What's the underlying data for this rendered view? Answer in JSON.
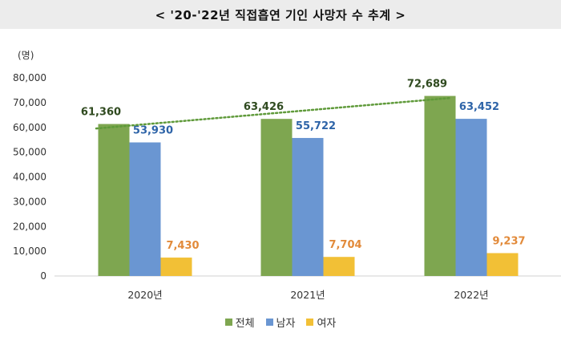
{
  "title": "< '20-'22년 직접흡연 기인 사망자 수 추계 >",
  "unit_label": "(명)",
  "chart_data": {
    "type": "bar",
    "categories": [
      "2020년",
      "2021년",
      "2022년"
    ],
    "series": [
      {
        "name": "전체",
        "values": [
          61360,
          63426,
          72689
        ],
        "labels": [
          "61,360",
          "63,426",
          "72,689"
        ],
        "color": "#7ea650",
        "label_color": "#2f4a1f"
      },
      {
        "name": "남자",
        "values": [
          53930,
          55722,
          63452
        ],
        "labels": [
          "53,930",
          "55,722",
          "63,452"
        ],
        "color": "#6a96d2",
        "label_color": "#2e64a8"
      },
      {
        "name": "여자",
        "values": [
          7430,
          7704,
          9237
        ],
        "labels": [
          "7,430",
          "7,704",
          "9,237"
        ],
        "color": "#f2c036",
        "label_color": "#e28a3a"
      }
    ],
    "ylim": [
      0,
      80000
    ],
    "yticks": [
      "0",
      "10,000",
      "20,000",
      "30,000",
      "40,000",
      "50,000",
      "60,000",
      "70,000",
      "80,000"
    ],
    "trendline": {
      "series": "전체",
      "style": "dotted",
      "color": "#5f9a3a"
    },
    "grid": true,
    "legend_position": "bottom"
  }
}
